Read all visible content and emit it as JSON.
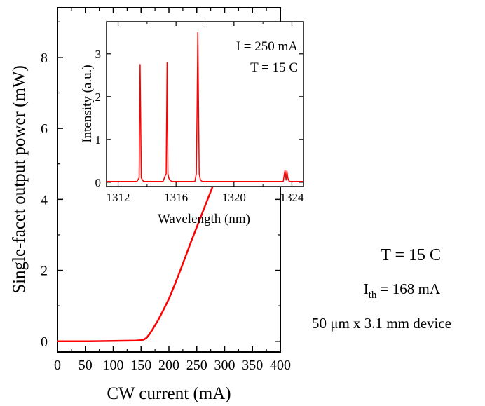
{
  "chart_data": [
    {
      "type": "line",
      "xlabel": "CW current (mA)",
      "ylabel": "Single-facet output power (mW)",
      "xlim": [
        0,
        400
      ],
      "ylim": [
        -0.3,
        9.4
      ],
      "xticks": [
        0,
        50,
        100,
        150,
        200,
        250,
        300,
        350,
        400
      ],
      "yticks": [
        0,
        2,
        4,
        6,
        8
      ],
      "series": [
        {
          "color": "#ff0000",
          "x": [
            0,
            50,
            100,
            140,
            150,
            155,
            160,
            165,
            170,
            175,
            180,
            190,
            200,
            210,
            220,
            230,
            240,
            250,
            260,
            270,
            280,
            290,
            300,
            310,
            320,
            330,
            340,
            350,
            360,
            370,
            380,
            390,
            400
          ],
          "y": [
            0.0,
            0.0,
            0.01,
            0.02,
            0.03,
            0.05,
            0.1,
            0.2,
            0.32,
            0.45,
            0.58,
            0.88,
            1.2,
            1.58,
            1.98,
            2.4,
            2.82,
            3.22,
            3.62,
            4.02,
            4.42,
            4.72,
            5.0,
            5.3,
            5.62,
            5.94,
            6.26,
            6.58,
            6.9,
            7.22,
            7.55,
            7.98,
            8.5
          ]
        }
      ],
      "annotations": [
        {
          "text": "T = 15 C"
        },
        {
          "text": "I",
          "sub": "th",
          "rest": " = 168 mA"
        },
        {
          "text": "50 μm x 3.1 mm device"
        }
      ],
      "grid": false
    },
    {
      "type": "line",
      "role": "inset",
      "xlabel": "Wavelength (nm)",
      "ylabel": "Intensity (a.u.)",
      "xlim": [
        1311.2,
        1324.8
      ],
      "ylim": [
        -0.1,
        3.75
      ],
      "xticks": [
        1312,
        1316,
        1320,
        1324
      ],
      "yticks": [
        0,
        1,
        2,
        3
      ],
      "series": [
        {
          "color": "#ff0000",
          "x": [
            1311.2,
            1313.3,
            1313.45,
            1313.52,
            1313.6,
            1313.75,
            1315.1,
            1315.25,
            1315.32,
            1315.38,
            1315.44,
            1315.5,
            1315.58,
            1315.7,
            1317.3,
            1317.4,
            1317.46,
            1317.5,
            1317.55,
            1317.6,
            1317.65,
            1317.7,
            1317.8,
            1323.4,
            1323.52,
            1323.6,
            1323.66,
            1323.72,
            1323.8,
            1323.88,
            1324.0,
            1324.8
          ],
          "y": [
            0.02,
            0.02,
            0.1,
            2.75,
            0.1,
            0.02,
            0.02,
            0.15,
            0.2,
            2.8,
            0.2,
            0.1,
            0.05,
            0.02,
            0.02,
            0.2,
            1.8,
            3.5,
            1.9,
            0.2,
            0.1,
            0.05,
            0.02,
            0.02,
            0.28,
            0.05,
            0.26,
            0.1,
            0.03,
            0.02,
            0.02,
            0.02
          ]
        }
      ],
      "annotations": [
        {
          "text": "I = 250 mA"
        },
        {
          "text": "T = 15 C"
        }
      ]
    }
  ]
}
